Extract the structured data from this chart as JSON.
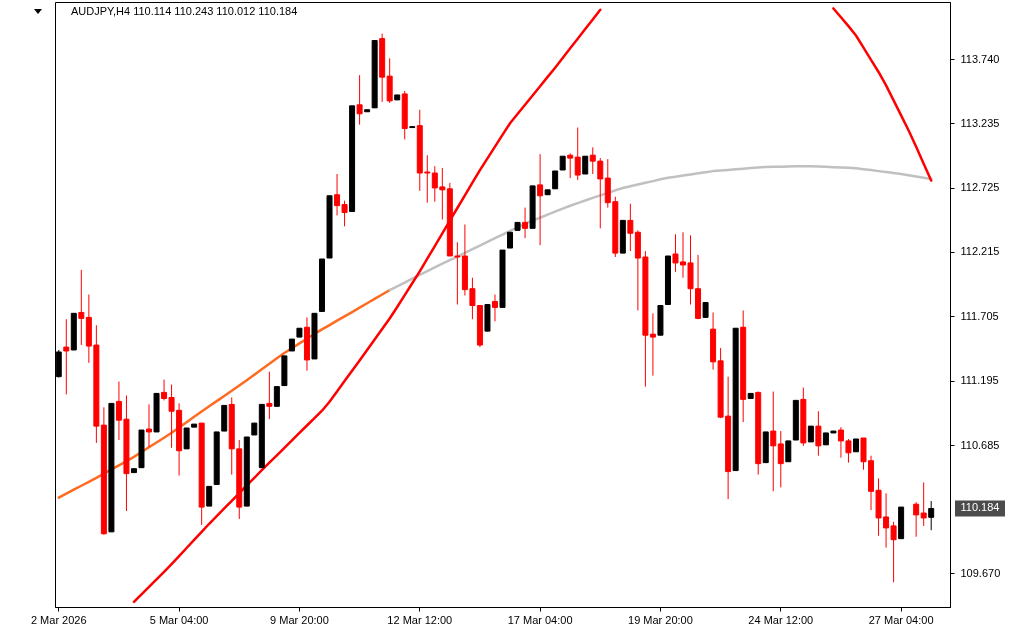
{
  "chart_data": {
    "type": "candlestick",
    "title": "AUDJPY,H4  110.114 110.243 110.012 110.184",
    "ylim": [
      109.404,
      114.194
    ],
    "categories": [
      "2 Mar 2026",
      null,
      null,
      null,
      null,
      null,
      null,
      null,
      null,
      null,
      null,
      null,
      null,
      null,
      null,
      null,
      "5 Mar 04:00",
      null,
      null,
      null,
      null,
      null,
      null,
      null,
      null,
      null,
      null,
      null,
      null,
      null,
      null,
      null,
      "9 Mar 20:00",
      null,
      null,
      null,
      null,
      null,
      null,
      null,
      null,
      null,
      null,
      null,
      null,
      null,
      null,
      null,
      "12 Mar 12:00",
      null,
      null,
      null,
      null,
      null,
      null,
      null,
      null,
      null,
      null,
      null,
      null,
      null,
      null,
      null,
      "17 Mar 04:00",
      null,
      null,
      null,
      null,
      null,
      null,
      null,
      null,
      null,
      null,
      null,
      null,
      null,
      null,
      null,
      "19 Mar 20:00",
      null,
      null,
      null,
      null,
      null,
      null,
      null,
      null,
      null,
      null,
      null,
      null,
      null,
      null,
      null,
      "24 Mar 12:00",
      null,
      null,
      null,
      null,
      null,
      null,
      null,
      null,
      null,
      null,
      null,
      null,
      null,
      null,
      null,
      "27 Mar 04:00",
      null,
      null,
      null,
      null
    ],
    "yticks": [
      {
        "value": 113.74,
        "label": "113.740"
      },
      {
        "value": 113.235,
        "label": "113.235"
      },
      {
        "value": 112.725,
        "label": "112.725"
      },
      {
        "value": 112.215,
        "label": "112.215"
      },
      {
        "value": 111.705,
        "label": "111.705"
      },
      {
        "value": 111.195,
        "label": "111.195"
      },
      {
        "value": 110.685,
        "label": "110.685"
      },
      {
        "value": 109.67,
        "label": "109.670"
      }
    ],
    "ohlc": [
      [
        111.228,
        111.439,
        111.22,
        111.423
      ],
      [
        111.462,
        111.682,
        111.087,
        111.431
      ],
      [
        111.439,
        111.729,
        111.439,
        111.729
      ],
      [
        111.736,
        112.073,
        111.478,
        111.689
      ],
      [
        111.697,
        111.878,
        111.337,
        111.47
      ],
      [
        111.478,
        111.635,
        110.703,
        110.836
      ],
      [
        110.844,
        110.985,
        109.976,
        109.984
      ],
      [
        109.999,
        111.016,
        109.999,
        111.016
      ],
      [
        111.032,
        111.189,
        110.726,
        110.883
      ],
      [
        110.891,
        111.079,
        110.164,
        110.46
      ],
      [
        110.468,
        110.499,
        110.468,
        110.499
      ],
      [
        110.507,
        110.805,
        110.507,
        110.805
      ],
      [
        110.813,
        111.008,
        110.672,
        110.79
      ],
      [
        110.79,
        111.095,
        110.79,
        111.095
      ],
      [
        111.103,
        111.204,
        111.04,
        111.055
      ],
      [
        111.063,
        111.165,
        110.664,
        110.954
      ],
      [
        110.961,
        111.016,
        110.445,
        110.641
      ],
      [
        110.656,
        110.821,
        110.656,
        110.821
      ],
      [
        110.828,
        110.852,
        110.828,
        110.852
      ],
      [
        110.86,
        110.86,
        110.054,
        110.195
      ],
      [
        110.203,
        110.359,
        110.203,
        110.359
      ],
      [
        110.374,
        110.79,
        110.374,
        110.79
      ],
      [
        110.797,
        111.0,
        110.797,
        111.0
      ],
      [
        111.008,
        111.063,
        110.452,
        110.656
      ],
      [
        110.656,
        110.726,
        110.101,
        110.195
      ],
      [
        110.203,
        110.75,
        110.203,
        110.75
      ],
      [
        110.766,
        110.86,
        110.766,
        110.86
      ],
      [
        110.507,
        111.008,
        110.507,
        111.008
      ],
      [
        111.016,
        111.267,
        110.891,
        110.993
      ],
      [
        110.993,
        111.149,
        110.993,
        111.149
      ],
      [
        111.157,
        111.392,
        111.157,
        111.392
      ],
      [
        111.431,
        111.525,
        111.431,
        111.525
      ],
      [
        111.541,
        111.611,
        111.541,
        111.611
      ],
      [
        111.619,
        111.697,
        111.275,
        111.36
      ],
      [
        111.368,
        111.729,
        111.368,
        111.729
      ],
      [
        111.744,
        112.159,
        111.744,
        112.159
      ],
      [
        112.167,
        112.66,
        112.167,
        112.66
      ],
      [
        112.668,
        112.832,
        112.504,
        112.582
      ],
      [
        112.59,
        112.621,
        112.418,
        112.527
      ],
      [
        112.535,
        113.372,
        112.535,
        113.372
      ],
      [
        113.38,
        113.615,
        113.223,
        113.309
      ],
      [
        113.325,
        113.341,
        113.325,
        113.341
      ],
      [
        113.356,
        113.889,
        113.356,
        113.889
      ],
      [
        113.904,
        113.944,
        113.403,
        113.599
      ],
      [
        113.607,
        113.748,
        113.395,
        113.411
      ],
      [
        113.419,
        113.458,
        113.419,
        113.458
      ],
      [
        113.466,
        113.49,
        113.106,
        113.192
      ],
      [
        113.2,
        113.207,
        113.2,
        113.207
      ],
      [
        113.215,
        113.341,
        112.699,
        112.84
      ],
      [
        112.848,
        112.981,
        112.605,
        112.84
      ],
      [
        112.84,
        112.894,
        112.613,
        112.722
      ],
      [
        112.73,
        112.879,
        112.472,
        112.707
      ],
      [
        112.715,
        112.762,
        112.183,
        112.183
      ],
      [
        112.183,
        112.292,
        111.799,
        112.175
      ],
      [
        112.183,
        112.433,
        111.87,
        111.917
      ],
      [
        111.924,
        112.011,
        111.682,
        111.791
      ],
      [
        111.791,
        111.791,
        111.462,
        111.478
      ],
      [
        111.588,
        111.799,
        111.588,
        111.799
      ],
      [
        111.823,
        111.878,
        111.666,
        111.776
      ],
      [
        111.776,
        112.23,
        111.776,
        112.23
      ],
      [
        112.246,
        112.371,
        112.246,
        112.371
      ],
      [
        112.386,
        112.449,
        112.386,
        112.449
      ],
      [
        112.449,
        112.566,
        112.324,
        112.402
      ],
      [
        112.402,
        112.738,
        112.402,
        112.738
      ],
      [
        112.746,
        112.989,
        112.269,
        112.66
      ],
      [
        112.668,
        112.707,
        112.668,
        112.707
      ],
      [
        112.715,
        112.856,
        112.715,
        112.856
      ],
      [
        112.864,
        112.973,
        112.864,
        112.973
      ],
      [
        112.981,
        112.996,
        112.8,
        112.958
      ],
      [
        112.966,
        113.2,
        112.785,
        112.824
      ],
      [
        112.832,
        112.973,
        112.832,
        112.973
      ],
      [
        112.981,
        113.043,
        112.832,
        112.934
      ],
      [
        112.934,
        112.958,
        112.402,
        112.793
      ],
      [
        112.8,
        112.95,
        112.566,
        112.605
      ],
      [
        112.613,
        112.652,
        112.175,
        112.206
      ],
      [
        112.206,
        112.465,
        112.206,
        112.465
      ],
      [
        112.465,
        112.597,
        112.222,
        112.363
      ],
      [
        112.371,
        112.386,
        111.752,
        112.167
      ],
      [
        112.175,
        112.222,
        111.149,
        111.556
      ],
      [
        111.564,
        111.729,
        111.236,
        111.541
      ],
      [
        111.556,
        111.791,
        111.556,
        111.791
      ],
      [
        111.799,
        112.183,
        111.799,
        112.183
      ],
      [
        112.199,
        112.355,
        112.058,
        112.128
      ],
      [
        112.136,
        112.371,
        112.011,
        112.112
      ],
      [
        112.128,
        112.347,
        111.799,
        111.924
      ],
      [
        111.924,
        112.191,
        111.682,
        111.689
      ],
      [
        111.697,
        111.815,
        111.697,
        111.815
      ],
      [
        111.604,
        111.736,
        111.283,
        111.345
      ],
      [
        111.353,
        111.455,
        110.899,
        110.907
      ],
      [
        110.915,
        111.228,
        110.258,
        110.476
      ],
      [
        110.484,
        111.611,
        110.484,
        111.611
      ],
      [
        111.619,
        111.752,
        110.868,
        111.048
      ],
      [
        111.055,
        111.095,
        111.055,
        111.095
      ],
      [
        111.103,
        111.11,
        110.452,
        110.539
      ],
      [
        110.547,
        110.79,
        110.547,
        110.79
      ],
      [
        110.797,
        111.11,
        110.32,
        110.68
      ],
      [
        110.695,
        110.797,
        110.351,
        110.539
      ],
      [
        110.554,
        110.719,
        110.554,
        110.719
      ],
      [
        110.726,
        111.04,
        110.726,
        111.04
      ],
      [
        111.048,
        111.141,
        110.68,
        110.703
      ],
      [
        110.711,
        110.836,
        110.711,
        110.836
      ],
      [
        110.836,
        110.954,
        110.602,
        110.68
      ],
      [
        110.688,
        110.782,
        110.688,
        110.782
      ],
      [
        110.782,
        110.797,
        110.782,
        110.797
      ],
      [
        110.805,
        110.828,
        110.586,
        110.719
      ],
      [
        110.719,
        110.734,
        110.547,
        110.625
      ],
      [
        110.633,
        110.734,
        110.633,
        110.734
      ],
      [
        110.742,
        110.742,
        110.491,
        110.554
      ],
      [
        110.562,
        110.602,
        110.171,
        110.32
      ],
      [
        110.328,
        110.422,
        109.968,
        110.109
      ],
      [
        110.117,
        110.304,
        109.874,
        110.03
      ],
      [
        110.046,
        110.078,
        109.6,
        109.937
      ],
      [
        109.945,
        110.195,
        109.945,
        110.195
      ],
      null,
      [
        110.218,
        110.234,
        109.96,
        110.133
      ],
      [
        110.148,
        110.39,
        110.046,
        110.109
      ],
      [
        110.114,
        110.243,
        110.012,
        110.184
      ]
    ],
    "colors": [
      "#000000",
      "#ff0000",
      "#000000",
      "#ff0000",
      "#ff0000",
      "#ff0000",
      "#ff0000",
      "#000000",
      "#ff0000",
      "#ff0000",
      "#000000",
      "#000000",
      "#ff0000",
      "#000000",
      "#ff0000",
      "#ff0000",
      "#ff0000",
      "#000000",
      "#000000",
      "#ff0000",
      "#000000",
      "#000000",
      "#000000",
      "#ff0000",
      "#ff0000",
      "#000000",
      "#000000",
      "#000000",
      "#ff0000",
      "#000000",
      "#000000",
      "#000000",
      "#000000",
      "#ff0000",
      "#000000",
      "#000000",
      "#000000",
      "#ff0000",
      "#ff0000",
      "#000000",
      "#ff0000",
      "#000000",
      "#000000",
      "#ff0000",
      "#ff0000",
      "#000000",
      "#ff0000",
      "#000000",
      "#ff0000",
      "#ff0000",
      "#ff0000",
      "#ff0000",
      "#ff0000",
      "#ff0000",
      "#ff0000",
      "#ff0000",
      "#ff0000",
      "#000000",
      "#ff0000",
      "#000000",
      "#000000",
      "#000000",
      "#ff0000",
      "#000000",
      "#ff0000",
      "#000000",
      "#000000",
      "#000000",
      "#ff0000",
      "#ff0000",
      "#000000",
      "#ff0000",
      "#ff0000",
      "#ff0000",
      "#ff0000",
      "#000000",
      "#ff0000",
      "#ff0000",
      "#ff0000",
      "#ff0000",
      "#000000",
      "#000000",
      "#ff0000",
      "#ff0000",
      "#ff0000",
      "#ff0000",
      "#000000",
      "#ff0000",
      "#ff0000",
      "#ff0000",
      "#000000",
      "#ff0000",
      "#000000",
      "#ff0000",
      "#000000",
      "#ff0000",
      "#ff0000",
      "#000000",
      "#000000",
      "#ff0000",
      "#000000",
      "#ff0000",
      "#000000",
      "#000000",
      "#ff0000",
      "#ff0000",
      "#000000",
      "#ff0000",
      "#ff0000",
      "#ff0000",
      "#ff0000",
      "#ff0000",
      "#000000",
      null,
      "#ff0000",
      "#ff0000",
      "#000000"
    ],
    "series": [
      {
        "type": "line",
        "color": "#ff6a21",
        "values": [
          110.27,
          110.301,
          110.333,
          110.364,
          110.395,
          110.427,
          110.46,
          110.493,
          110.525,
          110.558,
          110.593,
          110.631,
          110.669,
          110.706,
          110.744,
          110.783,
          110.825,
          110.867,
          110.91,
          110.952,
          110.994,
          111.034,
          111.075,
          111.116,
          111.157,
          111.199,
          111.243,
          111.287,
          111.33,
          111.374,
          111.415,
          111.453,
          111.491,
          111.528,
          111.566,
          111.602,
          111.636,
          111.671,
          111.705,
          111.739,
          111.774,
          111.809,
          111.844,
          111.878,
          111.913,
          null,
          null,
          null,
          null,
          null,
          null,
          null,
          null,
          null,
          null,
          null,
          null,
          null,
          null,
          null,
          null,
          null,
          null,
          null,
          null,
          null,
          null,
          null,
          null,
          null,
          null,
          null,
          null,
          null,
          null,
          null,
          null,
          null,
          null,
          null,
          null,
          null,
          null,
          null,
          null,
          null,
          null,
          null,
          null,
          null,
          null,
          null,
          null,
          null,
          null,
          null,
          null,
          null,
          null,
          null,
          null,
          null,
          null,
          null,
          null,
          null,
          null,
          null,
          null,
          null,
          null,
          null,
          null,
          null,
          null,
          null,
          null
        ]
      },
      {
        "type": "line",
        "color": "#c0c0c0",
        "values": [
          null,
          null,
          null,
          null,
          null,
          null,
          null,
          null,
          null,
          null,
          null,
          null,
          null,
          null,
          null,
          null,
          null,
          null,
          null,
          null,
          null,
          null,
          null,
          null,
          null,
          null,
          null,
          null,
          null,
          null,
          null,
          null,
          null,
          null,
          null,
          null,
          null,
          null,
          null,
          null,
          null,
          null,
          null,
          null,
          111.913,
          111.943,
          111.973,
          112.003,
          112.033,
          112.063,
          112.093,
          112.122,
          112.15,
          112.179,
          112.208,
          112.237,
          112.266,
          112.295,
          112.324,
          112.352,
          112.381,
          112.41,
          112.439,
          112.463,
          112.486,
          112.51,
          112.534,
          112.558,
          112.581,
          112.602,
          112.622,
          112.643,
          112.663,
          112.683,
          112.703,
          112.721,
          112.735,
          112.749,
          112.763,
          112.776,
          112.79,
          112.802,
          112.811,
          112.82,
          112.829,
          112.838,
          112.846,
          112.855,
          112.859,
          112.864,
          112.869,
          112.874,
          112.879,
          112.884,
          112.888,
          112.889,
          112.89,
          112.892,
          112.893,
          112.894,
          112.894,
          112.891,
          112.889,
          112.886,
          112.884,
          112.881,
          112.878,
          112.87,
          112.863,
          112.855,
          112.848,
          112.84,
          112.833,
          112.823,
          112.813,
          112.803,
          112.793
        ]
      },
      {
        "type": "line",
        "color": "#ff0000",
        "values": [
          null,
          null,
          null,
          null,
          null,
          null,
          null,
          null,
          null,
          null,
          109.444,
          109.504,
          109.563,
          109.622,
          109.682,
          109.743,
          109.807,
          109.871,
          109.935,
          109.999,
          110.063,
          110.124,
          110.184,
          110.245,
          110.305,
          110.366,
          110.426,
          110.487,
          110.547,
          110.605,
          110.664,
          110.723,
          110.782,
          110.841,
          110.9,
          110.958,
          111.029,
          111.111,
          111.193,
          111.275,
          111.356,
          111.439,
          111.522,
          111.605,
          111.688,
          111.779,
          111.873,
          111.967,
          112.061,
          112.162,
          112.262,
          112.363,
          112.463,
          112.563,
          112.663,
          112.764,
          112.863,
          112.956,
          113.049,
          113.142,
          113.234,
          113.307,
          113.381,
          113.454,
          113.527,
          113.601,
          113.674,
          113.75,
          113.827,
          113.903,
          113.98,
          114.056,
          114.132,
          null,
          null,
          null,
          null,
          null,
          null,
          null,
          null,
          null,
          null,
          null,
          null,
          null,
          null,
          null,
          null,
          null,
          null,
          null,
          null,
          null,
          null,
          null,
          null,
          null,
          null,
          null,
          null,
          null,
          null,
          114.143,
          114.073,
          114.003,
          113.929,
          113.833,
          113.736,
          113.64,
          113.534,
          113.415,
          113.296,
          113.177,
          113.048,
          112.914,
          112.78
        ]
      }
    ],
    "annotations": [
      "110.184"
    ]
  }
}
